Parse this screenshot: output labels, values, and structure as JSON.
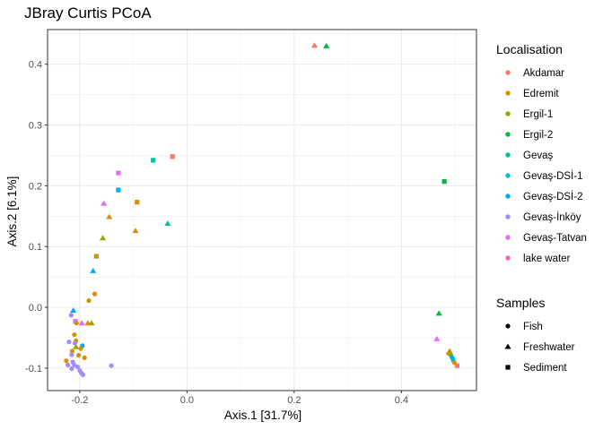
{
  "chart_data": {
    "type": "scatter",
    "title": "JBray Curtis PCoA",
    "xlabel": "Axis.1   [31.7%]",
    "ylabel": "Axis.2   [6.1%]",
    "xlim": [
      -0.26,
      0.54
    ],
    "ylim": [
      -0.137,
      0.457
    ],
    "xticks": [
      -0.2,
      0.0,
      0.2,
      0.4
    ],
    "xtick_labels": [
      "-0.2",
      "0.0",
      "0.2",
      "0.4"
    ],
    "yticks": [
      -0.1,
      0.0,
      0.1,
      0.2,
      0.3,
      0.4
    ],
    "ytick_labels": [
      "-0.1",
      "0.0",
      "0.1",
      "0.2",
      "0.3",
      "0.4"
    ],
    "grid": true,
    "legend_position": "right",
    "color_legend": {
      "title": "Localisation",
      "entries": [
        {
          "name": "Akdamar",
          "color": "#F8766D"
        },
        {
          "name": "Edremit",
          "color": "#D39200"
        },
        {
          "name": "Ergil-1",
          "color": "#93AA00"
        },
        {
          "name": "Ergil-2",
          "color": "#00BA38"
        },
        {
          "name": "Gevaş",
          "color": "#00C19F"
        },
        {
          "name": "Gevaş-DSİ-1",
          "color": "#00B9E3"
        },
        {
          "name": "Gevaş-DSİ-2",
          "color": "#00A9FF"
        },
        {
          "name": "Gevaş-İnköy",
          "color": "#A58AFF"
        },
        {
          "name": "Gevaş-Tatvan",
          "color": "#E76BF3"
        },
        {
          "name": "lake water",
          "color": "#FF62BC"
        }
      ]
    },
    "shape_legend": {
      "title": "Samples",
      "entries": [
        {
          "name": "Fish",
          "shape": "circle"
        },
        {
          "name": "Freshwater",
          "shape": "triangle"
        },
        {
          "name": "Sediment",
          "shape": "square"
        }
      ]
    },
    "points": [
      {
        "x": 0.238,
        "y": 0.431,
        "group": "Akdamar",
        "shape": "triangle"
      },
      {
        "x": 0.26,
        "y": 0.43,
        "group": "Ergil-2",
        "shape": "triangle"
      },
      {
        "x": -0.027,
        "y": 0.248,
        "group": "Akdamar",
        "shape": "square"
      },
      {
        "x": -0.063,
        "y": 0.242,
        "group": "Gevaş",
        "shape": "square"
      },
      {
        "x": 0.48,
        "y": 0.207,
        "group": "Ergil-2",
        "shape": "square"
      },
      {
        "x": -0.128,
        "y": 0.221,
        "group": "Gevaş-Tatvan",
        "shape": "square"
      },
      {
        "x": -0.128,
        "y": 0.193,
        "group": "Gevaş-DSİ-2",
        "shape": "square"
      },
      {
        "x": -0.093,
        "y": 0.173,
        "group": "Edremit",
        "shape": "square"
      },
      {
        "x": -0.155,
        "y": 0.171,
        "group": "Gevaş-Tatvan",
        "shape": "triangle"
      },
      {
        "x": -0.145,
        "y": 0.149,
        "group": "Edremit",
        "shape": "triangle"
      },
      {
        "x": -0.036,
        "y": 0.138,
        "group": "Gevaş",
        "shape": "triangle"
      },
      {
        "x": -0.096,
        "y": 0.126,
        "group": "Edremit",
        "shape": "triangle"
      },
      {
        "x": -0.157,
        "y": 0.114,
        "group": "Ergil-1",
        "shape": "triangle"
      },
      {
        "x": -0.169,
        "y": 0.084,
        "group": "Edremit",
        "shape": "square"
      },
      {
        "x": -0.175,
        "y": 0.06,
        "group": "Gevaş-DSİ-2",
        "shape": "triangle"
      },
      {
        "x": -0.172,
        "y": 0.022,
        "group": "Edremit",
        "shape": "circle"
      },
      {
        "x": -0.183,
        "y": 0.011,
        "group": "Edremit",
        "shape": "circle"
      },
      {
        "x": -0.212,
        "y": -0.005,
        "group": "Gevaş-DSİ-2",
        "shape": "triangle"
      },
      {
        "x": -0.216,
        "y": -0.013,
        "group": "Gevaş-İnköy",
        "shape": "circle"
      },
      {
        "x": -0.208,
        "y": -0.023,
        "group": "Gevaş-Tatvan",
        "shape": "square"
      },
      {
        "x": -0.196,
        "y": -0.026,
        "group": "Gevaş-Tatvan",
        "shape": "triangle"
      },
      {
        "x": -0.206,
        "y": -0.026,
        "group": "Edremit",
        "shape": "circle"
      },
      {
        "x": -0.178,
        "y": -0.026,
        "group": "Ergil-1",
        "shape": "triangle"
      },
      {
        "x": -0.185,
        "y": -0.026,
        "group": "Edremit",
        "shape": "triangle"
      },
      {
        "x": -0.21,
        "y": -0.045,
        "group": "Edremit",
        "shape": "circle"
      },
      {
        "x": -0.207,
        "y": -0.055,
        "group": "Edremit",
        "shape": "circle"
      },
      {
        "x": -0.22,
        "y": -0.057,
        "group": "Gevaş-İnköy",
        "shape": "circle"
      },
      {
        "x": -0.209,
        "y": -0.059,
        "group": "Gevaş-İnköy",
        "shape": "circle"
      },
      {
        "x": -0.195,
        "y": -0.063,
        "group": "Gevaş-DSİ-2",
        "shape": "circle"
      },
      {
        "x": -0.207,
        "y": -0.065,
        "group": "Ergil-1",
        "shape": "triangle"
      },
      {
        "x": -0.198,
        "y": -0.068,
        "group": "Edremit",
        "shape": "circle"
      },
      {
        "x": -0.214,
        "y": -0.072,
        "group": "Edremit",
        "shape": "circle"
      },
      {
        "x": -0.215,
        "y": -0.078,
        "group": "Gevaş-İnköy",
        "shape": "circle"
      },
      {
        "x": -0.202,
        "y": -0.079,
        "group": "Edremit",
        "shape": "circle"
      },
      {
        "x": -0.191,
        "y": -0.083,
        "group": "Edremit",
        "shape": "circle"
      },
      {
        "x": -0.225,
        "y": -0.088,
        "group": "Edremit",
        "shape": "circle"
      },
      {
        "x": -0.213,
        "y": -0.09,
        "group": "Gevaş-İnköy",
        "shape": "circle"
      },
      {
        "x": -0.222,
        "y": -0.095,
        "group": "Gevaş-İnköy",
        "shape": "circle"
      },
      {
        "x": -0.21,
        "y": -0.095,
        "group": "Gevaş-İnköy",
        "shape": "circle"
      },
      {
        "x": -0.204,
        "y": -0.098,
        "group": "Gevaş-İnköy",
        "shape": "circle"
      },
      {
        "x": -0.215,
        "y": -0.101,
        "group": "Gevaş-İnköy",
        "shape": "circle"
      },
      {
        "x": -0.2,
        "y": -0.104,
        "group": "Gevaş-İnköy",
        "shape": "circle"
      },
      {
        "x": -0.197,
        "y": -0.108,
        "group": "Gevaş-İnköy",
        "shape": "circle"
      },
      {
        "x": -0.194,
        "y": -0.111,
        "group": "Gevaş-İnköy",
        "shape": "circle"
      },
      {
        "x": -0.141,
        "y": -0.096,
        "group": "Gevaş-İnköy",
        "shape": "circle"
      },
      {
        "x": 0.47,
        "y": -0.01,
        "group": "Ergil-2",
        "shape": "triangle"
      },
      {
        "x": 0.466,
        "y": -0.052,
        "group": "Gevaş-Tatvan",
        "shape": "triangle"
      },
      {
        "x": 0.49,
        "y": -0.072,
        "group": "Edremit",
        "shape": "triangle"
      },
      {
        "x": 0.488,
        "y": -0.076,
        "group": "Edremit",
        "shape": "circle"
      },
      {
        "x": 0.492,
        "y": -0.078,
        "group": "Ergil-1",
        "shape": "circle"
      },
      {
        "x": 0.494,
        "y": -0.082,
        "group": "Gevaş-DSİ-1",
        "shape": "circle"
      },
      {
        "x": 0.496,
        "y": -0.085,
        "group": "Gevaş-DSİ-2",
        "shape": "circle"
      },
      {
        "x": 0.497,
        "y": -0.088,
        "group": "Gevaş",
        "shape": "circle"
      },
      {
        "x": 0.499,
        "y": -0.091,
        "group": "Edremit",
        "shape": "circle"
      },
      {
        "x": 0.504,
        "y": -0.096,
        "group": "Akdamar",
        "shape": "square"
      }
    ]
  }
}
